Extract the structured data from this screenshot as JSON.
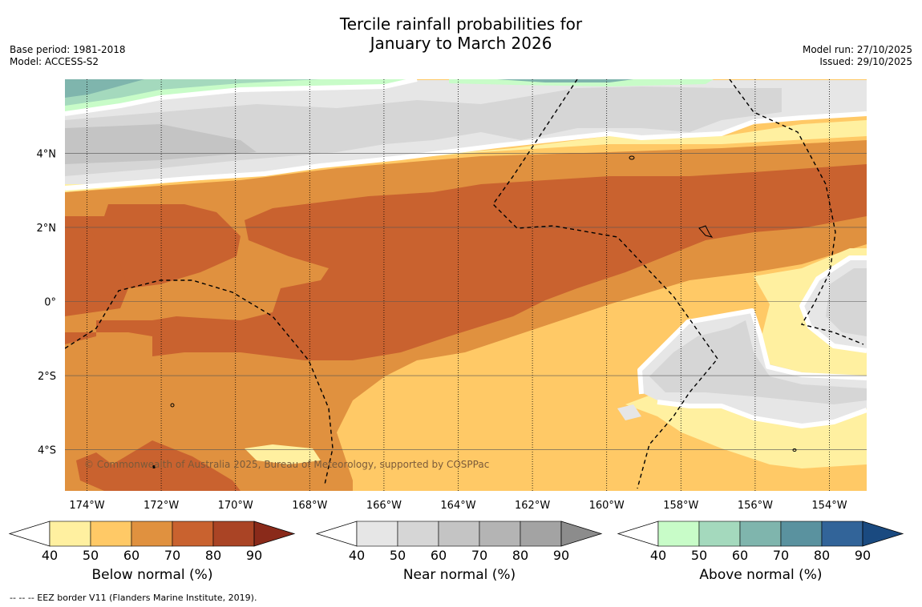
{
  "title_line1": "Tercile rainfall probabilities for",
  "title_line2": "January to March 2026",
  "base_period": "Base period: 1981-2018",
  "model": "Model: ACCESS-S2",
  "model_run": "Model run: 27/10/2025",
  "issued": "Issued: 29/10/2025",
  "copyright": "© Commonwealth of Australia 2025, Bureau of Meteorology, supported by COSPPac",
  "footnote": "-- -- -- EEZ border V11 (Flanders Marine Institute, 2019).",
  "lon_labels": [
    "174°W",
    "172°W",
    "170°W",
    "168°W",
    "166°W",
    "164°W",
    "162°W",
    "160°W",
    "158°W",
    "156°W",
    "154°W"
  ],
  "lon_values": [
    -174,
    -172,
    -170,
    -168,
    -166,
    -164,
    -162,
    -160,
    -158,
    -156,
    -154
  ],
  "lat_labels": [
    "4°N",
    "2°N",
    "0°",
    "2°S",
    "4°S"
  ],
  "lat_values": [
    4,
    2,
    0,
    -2,
    -4
  ],
  "colorbars": [
    {
      "title": "Below normal (%)",
      "ticks": [
        "40",
        "50",
        "60",
        "70",
        "80",
        "90"
      ],
      "colors": [
        "#fff0a0",
        "#ffc966",
        "#e0913f",
        "#c9622f",
        "#aa4425",
        "#8a2a1a"
      ]
    },
    {
      "title": "Near normal (%)",
      "ticks": [
        "40",
        "50",
        "60",
        "70",
        "80",
        "90"
      ],
      "colors": [
        "#e6e6e6",
        "#d6d6d6",
        "#c4c4c4",
        "#b4b4b4",
        "#a3a3a3",
        "#8c8c8c"
      ]
    },
    {
      "title": "Above normal (%)",
      "ticks": [
        "40",
        "50",
        "60",
        "70",
        "80",
        "90"
      ],
      "colors": [
        "#c8fcc8",
        "#a4d9bd",
        "#7fb5ad",
        "#5a929f",
        "#326499",
        "#1a4a80"
      ]
    }
  ],
  "colors": {
    "below_50": "#ffc966",
    "below_60": "#e0913f",
    "below_70": "#c9622f",
    "below_40": "#fff0a0",
    "near_40": "#e6e6e6",
    "near_50": "#d6d6d6",
    "above_40": "#c8fcc8",
    "above_50": "#a4d9bd",
    "above_60": "#7fb5ad"
  }
}
